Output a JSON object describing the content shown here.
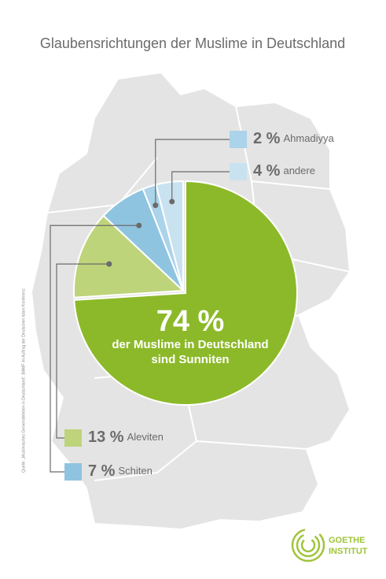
{
  "chart_data": {
    "type": "pie",
    "title": "Glaubensrichtungen der Muslime in Deutschland",
    "categories": [
      "der Muslime in Deutschland sind Sunniten",
      "Aleviten",
      "Schiten",
      "Ahmadiyya",
      "andere"
    ],
    "values": [
      74,
      13,
      7,
      2,
      4
    ],
    "value_labels": [
      "74 %",
      "13 %",
      "7 %",
      "2 %",
      "4 %"
    ],
    "colors": [
      "#8cb929",
      "#bdd47a",
      "#8fc4e0",
      "#abd3ea",
      "#c9e2f0"
    ],
    "source": "Quelle: „Muslimisches Gemeindeleben in Deutschland“, BAMF im Auftrag der Deutschen Islam Konferenz",
    "logo": [
      "GOETHE",
      "INSTITUT"
    ]
  }
}
